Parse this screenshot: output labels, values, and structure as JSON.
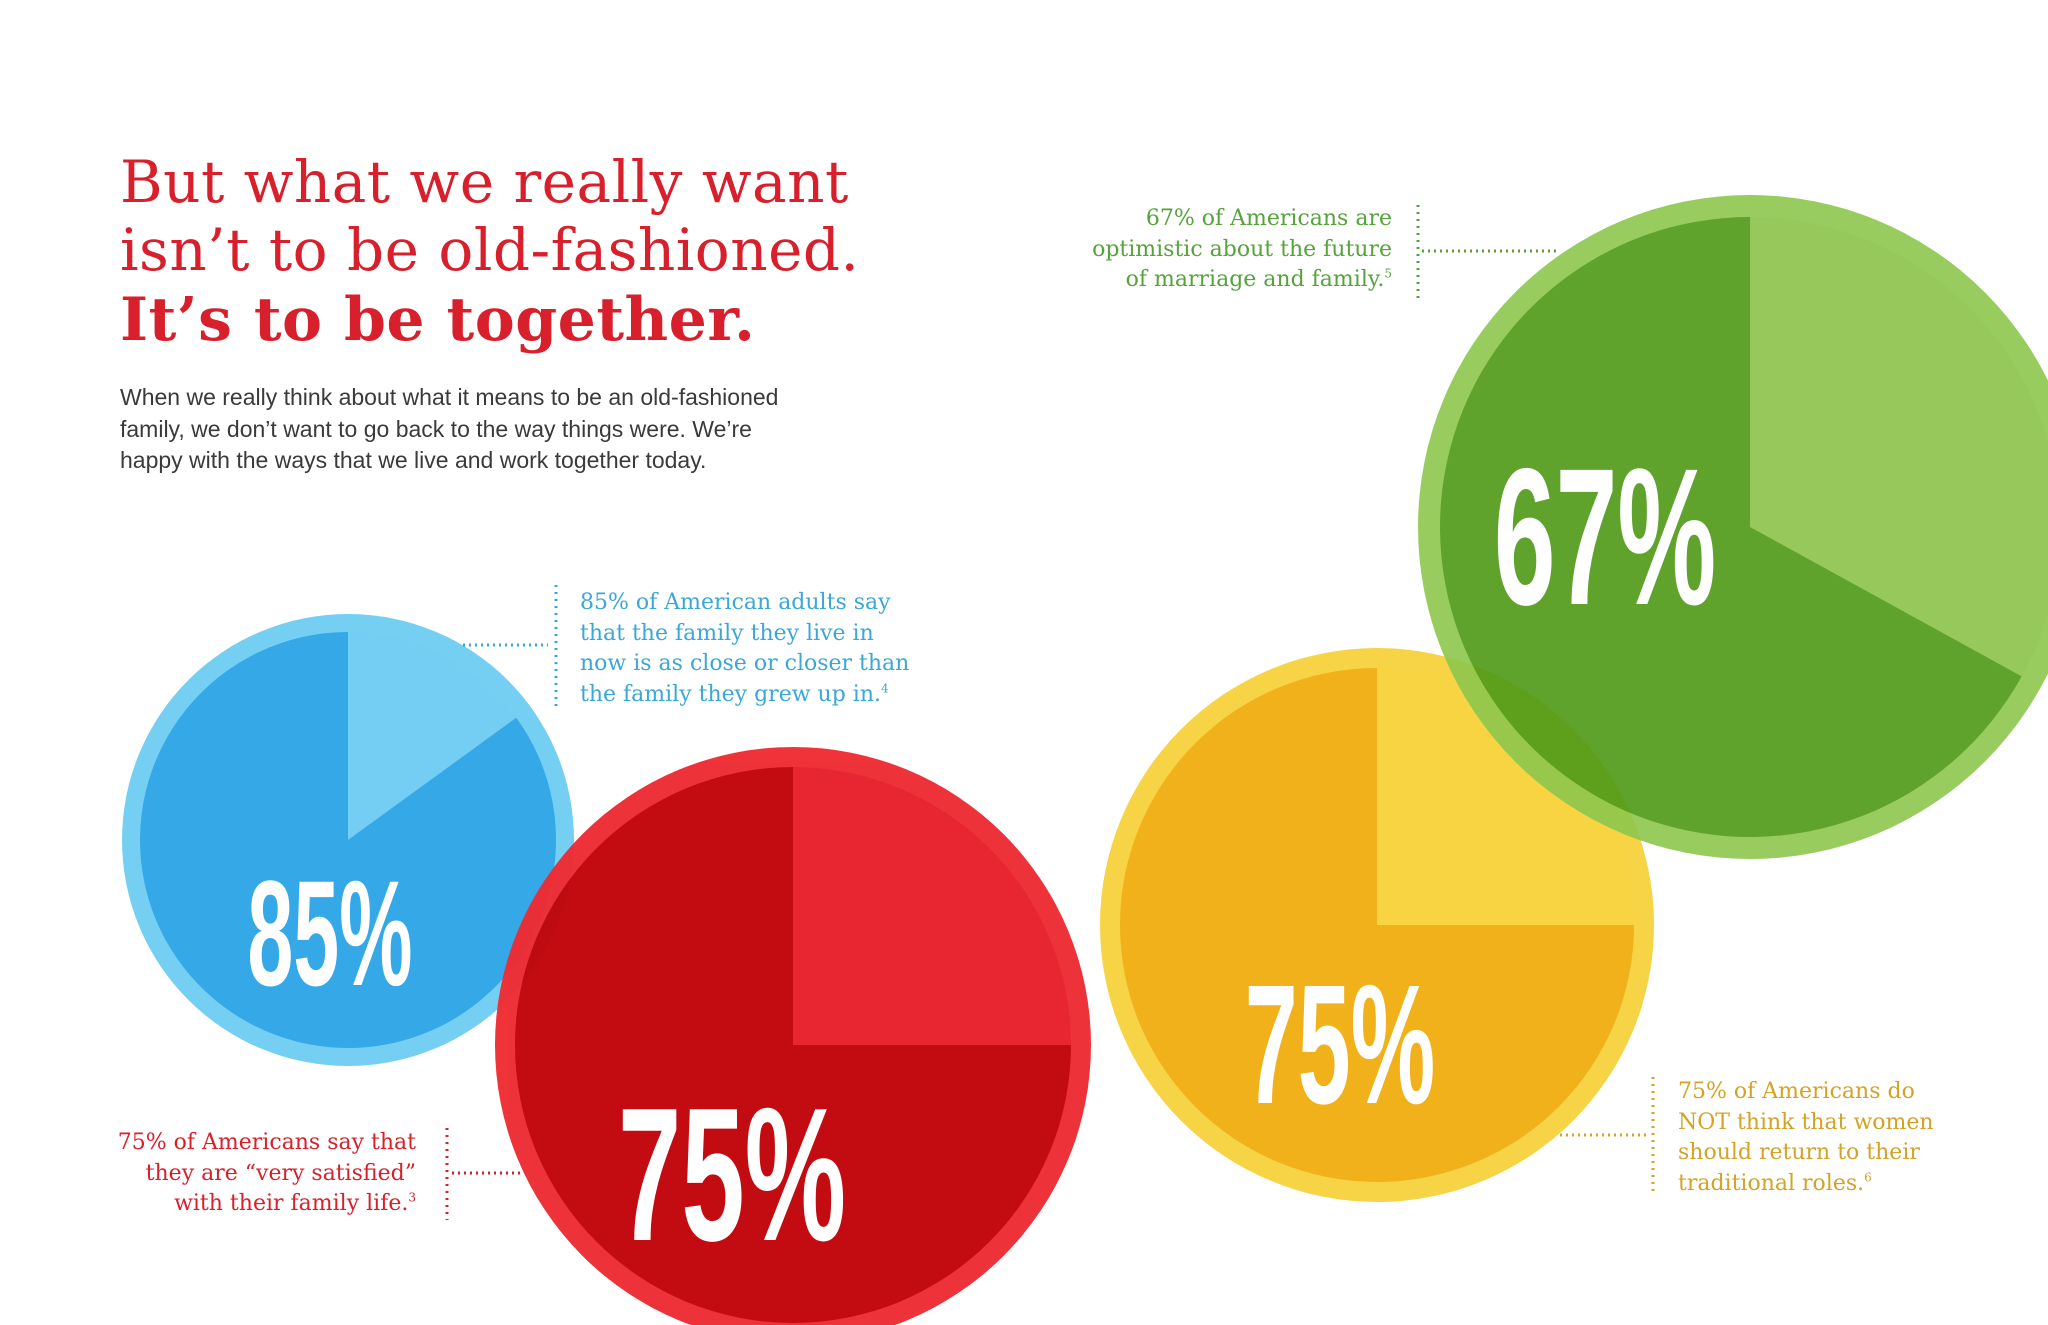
{
  "headline": {
    "line1": "But what we really want",
    "line2": "isn’t to be old-fashioned.",
    "line3": "It’s to be together."
  },
  "intro": {
    "line1": "When we really think about what it means to be an old-fashioned",
    "line2": "family, we don’t want to go back to the way things were. We’re",
    "line3": "happy with the ways that we live and work together today."
  },
  "callouts": {
    "green": {
      "lines": [
        "67% of Americans are",
        "optimistic about the future",
        "of marriage and family."
      ],
      "ref": "5"
    },
    "blue": {
      "lines": [
        "85% of American adults say",
        "that the family they live in",
        "now is as close or closer than",
        "the family they grew up in."
      ],
      "ref": "4"
    },
    "red": {
      "lines": [
        "75% of Americans say that",
        "they are “very satisfied”",
        "with their family life."
      ],
      "ref": "3"
    },
    "yellow": {
      "lines": [
        "75% of Americans do",
        "NOT think that women",
        "should return to their",
        "traditional roles."
      ],
      "ref": "6"
    }
  },
  "colors": {
    "blue": {
      "ring": "#75cff3",
      "light": "#74cdf2",
      "dark": "#35a8e7",
      "text": "#3aa7d8"
    },
    "red": {
      "ring": "#ee2c33",
      "light": "#e8202c",
      "dark": "#c1050b",
      "text": "#d7202c"
    },
    "yellow": {
      "ring": "#f7d346",
      "light": "#f8d443",
      "dark": "#f1b11a",
      "text": "#d4a225"
    },
    "green": {
      "ring": "#8dc74d",
      "light": "#8bc34a",
      "dark": "#4e9a17",
      "text": "#55a33a"
    }
  },
  "chart_data": [
    {
      "type": "pie",
      "id": "blue",
      "label": "85%",
      "values": [
        85,
        15
      ]
    },
    {
      "type": "pie",
      "id": "red",
      "label": "75%",
      "values": [
        75,
        25
      ]
    },
    {
      "type": "pie",
      "id": "yellow",
      "label": "75%",
      "values": [
        75,
        25
      ]
    },
    {
      "type": "pie",
      "id": "green",
      "label": "67%",
      "values": [
        67,
        33
      ]
    }
  ]
}
